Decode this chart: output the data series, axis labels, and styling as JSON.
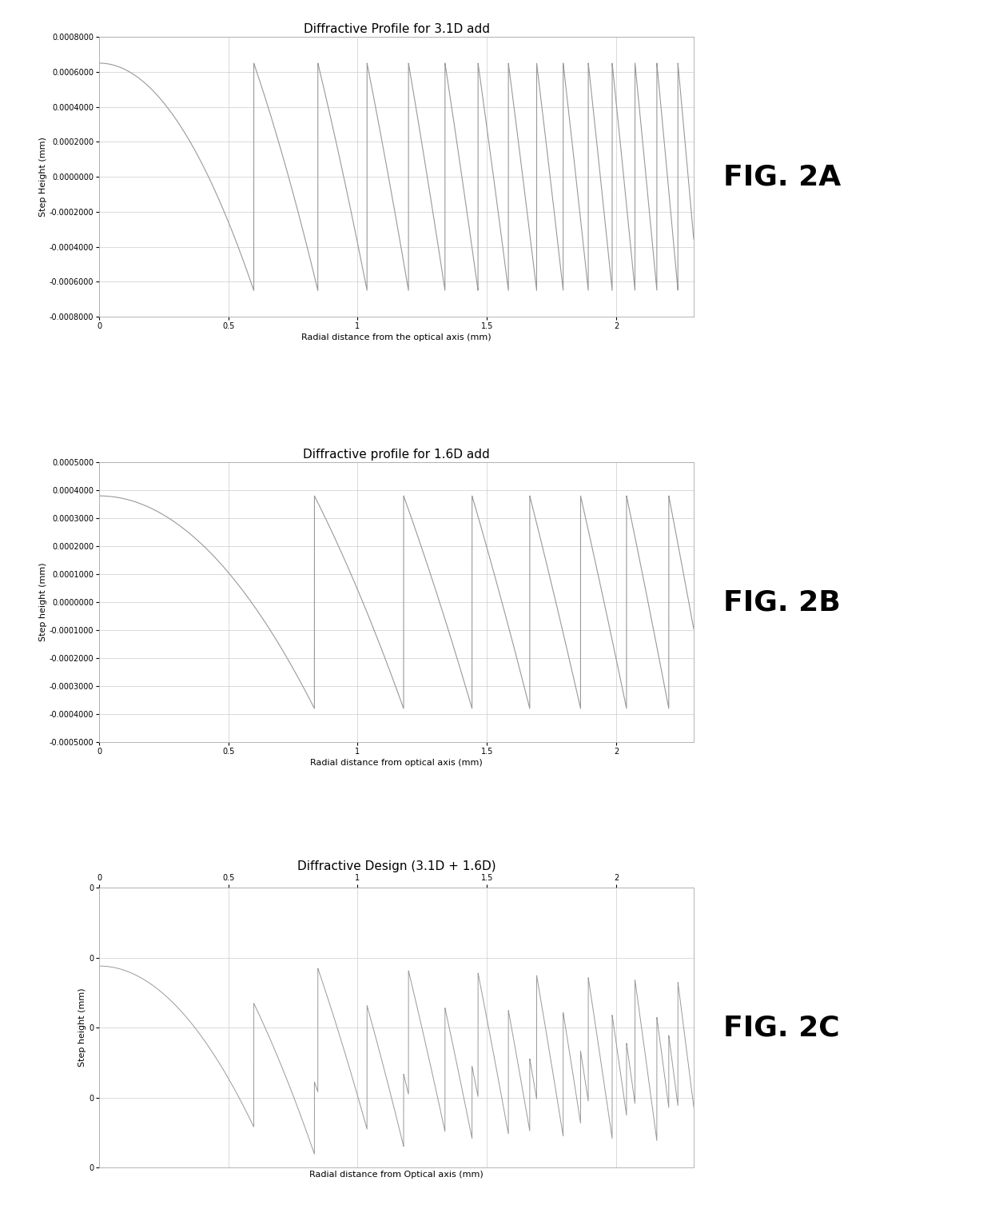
{
  "fig2a_title": "Diffractive Profile for 3.1D add",
  "fig2b_title": "Diffractive profile for 1.6D add",
  "fig2c_title": "Diffractive Design (3.1D + 1.6D)",
  "fig2a_xlabel": "Radial distance from the optical axis (mm)",
  "fig2b_xlabel": "Radial distance from optical axis (mm)",
  "fig2c_xlabel": "Radial distance from Optical axis (mm)",
  "fig2a_ylabel": "Step Height (mm)",
  "fig2b_ylabel": "Step height (mm)",
  "fig2c_ylabel": "Step height (mm)",
  "fig2a_ylim": [
    -0.0008,
    0.0008
  ],
  "fig2b_ylim": [
    -0.0005,
    0.0005
  ],
  "xlim": [
    0.0,
    2.3
  ],
  "add_power_A": 3.1,
  "add_power_B": 1.6,
  "wavelength": 0.000555,
  "n_diff": 0.47,
  "label_A": "FIG. 2A",
  "label_B": "FIG. 2B",
  "label_C": "FIG. 2C",
  "line_color": "#999999",
  "grid_color": "#cccccc",
  "bg_color": "#ffffff",
  "title_fontsize": 11,
  "axis_fontsize": 8,
  "tick_fontsize": 7,
  "fig_label_fontsize": 26
}
